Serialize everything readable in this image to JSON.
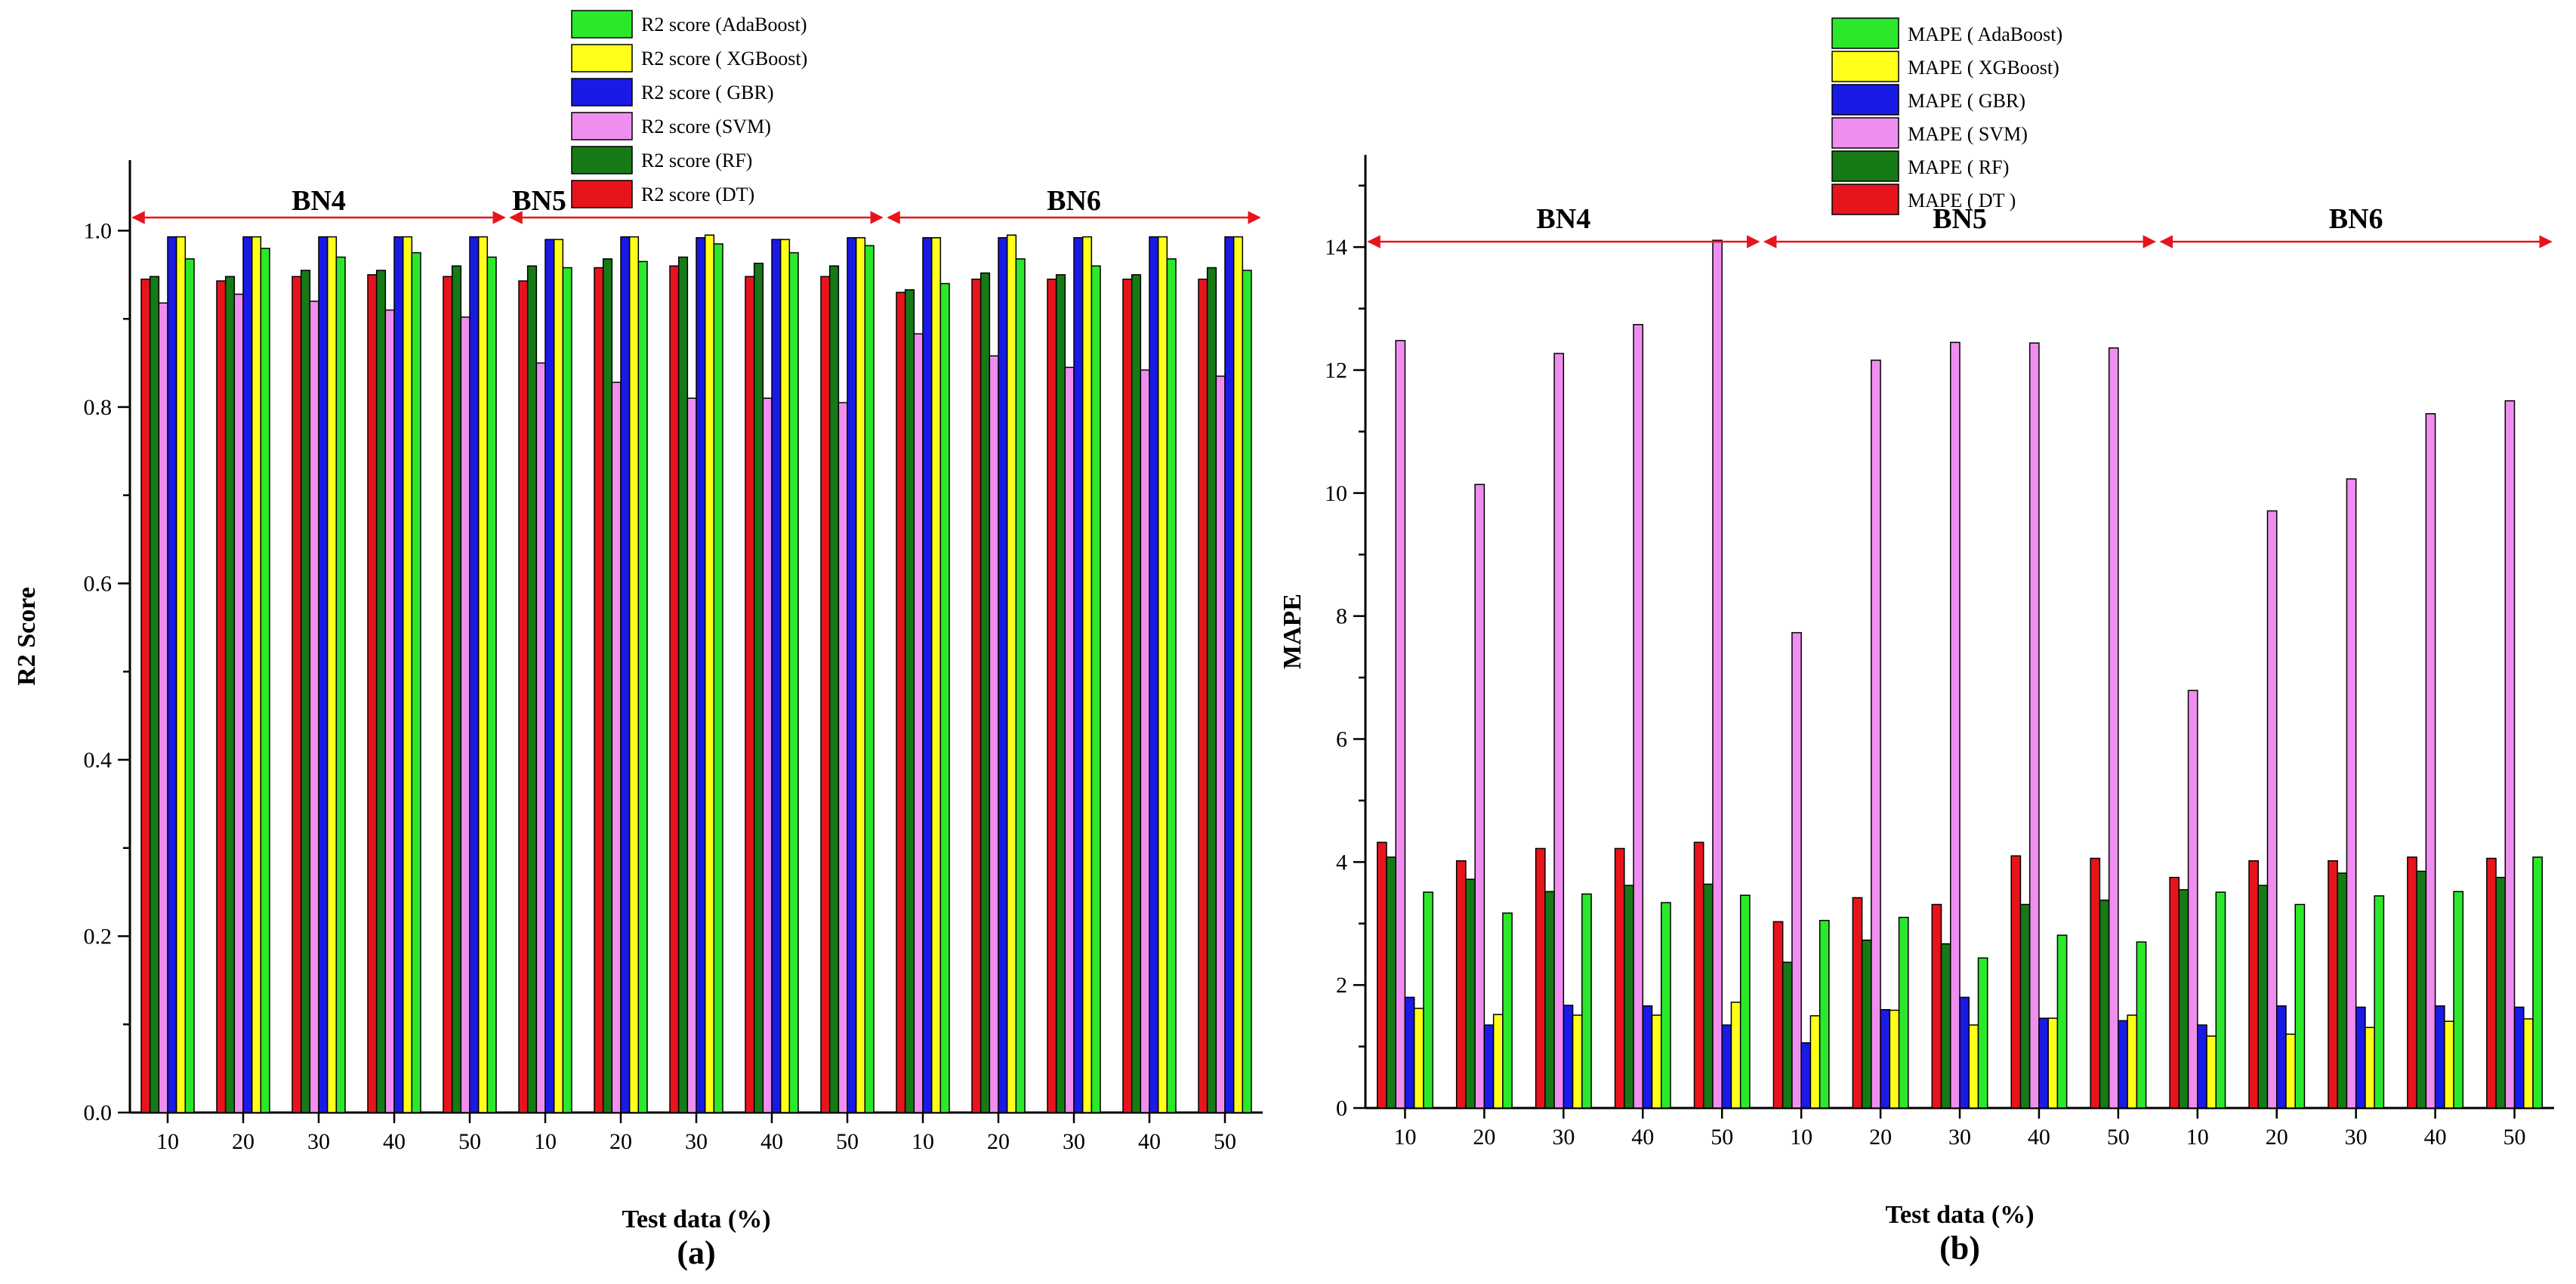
{
  "chart_data": [
    {
      "type": "bar",
      "panel": "(a)",
      "xlabel": "Test data (%)",
      "ylabel": "R2 Score",
      "ylim": [
        0,
        1.08
      ],
      "yticks": [
        "0.0",
        "0.2",
        "0.4",
        "0.6",
        "0.8",
        "1.0"
      ],
      "categories": [
        "10",
        "20",
        "30",
        "40",
        "50",
        "10",
        "20",
        "30",
        "40",
        "50",
        "10",
        "20",
        "30",
        "40",
        "50"
      ],
      "groups": [
        {
          "label": "BN4",
          "start": 0,
          "end": 5
        },
        {
          "label": "BN5",
          "start": 5,
          "end": 10
        },
        {
          "label": "BN6",
          "start": 10,
          "end": 15
        }
      ],
      "legend_order": [
        "R2 score (AdaBoost)",
        "R2 score ( XGBoost)",
        "R2 score ( GBR)",
        "R2 score (SVM)",
        "R2 score (RF)",
        "R2 score (DT)"
      ],
      "series": [
        {
          "name": "R2 score (DT)",
          "color": "#e8141c",
          "values": [
            0.945,
            0.943,
            0.948,
            0.95,
            0.948,
            0.943,
            0.958,
            0.96,
            0.948,
            0.948,
            0.93,
            0.945,
            0.945,
            0.945,
            0.945
          ]
        },
        {
          "name": "R2 score (RF)",
          "color": "#167a16",
          "values": [
            0.948,
            0.948,
            0.955,
            0.955,
            0.96,
            0.96,
            0.968,
            0.97,
            0.963,
            0.96,
            0.933,
            0.952,
            0.95,
            0.95,
            0.958
          ]
        },
        {
          "name": "R2 score (SVM)",
          "color": "#f08ef0",
          "values": [
            0.918,
            0.928,
            0.92,
            0.91,
            0.902,
            0.85,
            0.828,
            0.81,
            0.81,
            0.805,
            0.883,
            0.858,
            0.845,
            0.842,
            0.835
          ]
        },
        {
          "name": "R2 score ( GBR)",
          "color": "#1a1ae6",
          "values": [
            0.993,
            0.993,
            0.993,
            0.993,
            0.993,
            0.99,
            0.993,
            0.992,
            0.99,
            0.992,
            0.992,
            0.992,
            0.992,
            0.993,
            0.993
          ]
        },
        {
          "name": "R2 score ( XGBoost)",
          "color": "#ffff1a",
          "values": [
            0.993,
            0.993,
            0.993,
            0.993,
            0.993,
            0.99,
            0.993,
            0.995,
            0.99,
            0.992,
            0.992,
            0.995,
            0.993,
            0.993,
            0.993
          ]
        },
        {
          "name": "R2 score (AdaBoost)",
          "color": "#2be82b",
          "values": [
            0.968,
            0.98,
            0.97,
            0.975,
            0.97,
            0.958,
            0.965,
            0.985,
            0.975,
            0.983,
            0.94,
            0.968,
            0.96,
            0.968,
            0.955
          ]
        }
      ]
    },
    {
      "type": "bar",
      "panel": "(b)",
      "xlabel": "Test data (%)",
      "ylabel": "MAPE",
      "ylim": [
        0,
        15.5
      ],
      "yticks": [
        "0",
        "2",
        "4",
        "6",
        "8",
        "10",
        "12",
        "14"
      ],
      "categories": [
        "10",
        "20",
        "30",
        "40",
        "50",
        "10",
        "20",
        "30",
        "40",
        "50",
        "10",
        "20",
        "30",
        "40",
        "50"
      ],
      "groups": [
        {
          "label": "BN4",
          "start": 0,
          "end": 5
        },
        {
          "label": "BN5",
          "start": 5,
          "end": 10
        },
        {
          "label": "BN6",
          "start": 10,
          "end": 15
        }
      ],
      "legend_order": [
        "MAPE ( AdaBoost)",
        "MAPE ( XGBoost)",
        "MAPE ( GBR)",
        "MAPE ( SVM)",
        "MAPE ( RF)",
        "MAPE ( DT )"
      ],
      "series": [
        {
          "name": "MAPE ( DT )",
          "color": "#e8141c",
          "values": [
            4.32,
            4.02,
            4.22,
            4.22,
            4.32,
            3.03,
            3.42,
            3.31,
            4.1,
            4.06,
            3.75,
            4.02,
            4.02,
            4.08,
            4.06
          ]
        },
        {
          "name": "MAPE ( RF)",
          "color": "#167a16",
          "values": [
            4.08,
            3.72,
            3.52,
            3.62,
            3.64,
            2.37,
            2.73,
            2.67,
            3.31,
            3.38,
            3.55,
            3.62,
            3.82,
            3.85,
            3.75
          ]
        },
        {
          "name": "MAPE ( SVM)",
          "color": "#f08ef0",
          "values": [
            12.48,
            10.14,
            12.27,
            12.74,
            14.11,
            7.73,
            12.16,
            12.45,
            12.44,
            12.36,
            6.79,
            9.71,
            10.23,
            11.29,
            11.5
          ]
        },
        {
          "name": "MAPE ( GBR)",
          "color": "#1a1ae6",
          "values": [
            1.8,
            1.35,
            1.67,
            1.66,
            1.35,
            1.06,
            1.6,
            1.8,
            1.46,
            1.42,
            1.35,
            1.66,
            1.64,
            1.66,
            1.64
          ]
        },
        {
          "name": "MAPE ( XGBoost)",
          "color": "#ffff1a",
          "values": [
            1.62,
            1.52,
            1.51,
            1.51,
            1.72,
            1.5,
            1.59,
            1.35,
            1.46,
            1.51,
            1.17,
            1.2,
            1.31,
            1.41,
            1.45
          ]
        },
        {
          "name": "MAPE ( AdaBoost)",
          "color": "#2be82b",
          "values": [
            3.51,
            3.17,
            3.48,
            3.34,
            3.46,
            3.05,
            3.1,
            2.44,
            2.81,
            2.7,
            3.51,
            3.31,
            3.45,
            3.52,
            4.08
          ]
        }
      ]
    }
  ]
}
